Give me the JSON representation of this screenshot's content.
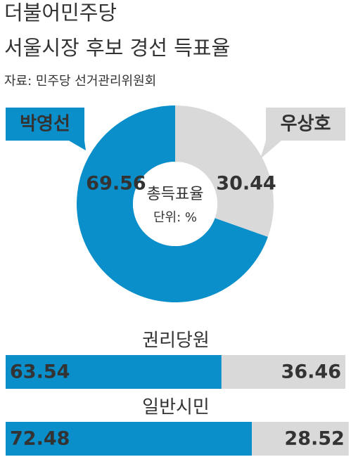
{
  "chart_data": [
    {
      "type": "donut",
      "title": "더불어민주당",
      "subtitle": "서울시장 후보 경선 득표율",
      "source": "자료: 민주당 선거관리위원회",
      "center_label": "총득표율",
      "unit_label": "단위: %",
      "categories": [
        "박영선",
        "우상호"
      ],
      "values": [
        69.56,
        30.44
      ],
      "colors": [
        "#0a8fca",
        "#d9d9d9"
      ]
    },
    {
      "type": "stacked-bar",
      "title": "권리당원",
      "values": [
        63.54,
        36.46
      ],
      "colors": [
        "#0a8fca",
        "#d9d9d9"
      ],
      "xlim": [
        0,
        100
      ]
    },
    {
      "type": "stacked-bar",
      "title": "일반시민",
      "values": [
        72.48,
        28.52
      ],
      "colors": [
        "#0a8fca",
        "#d9d9d9"
      ],
      "xlim": [
        0,
        100
      ]
    }
  ]
}
